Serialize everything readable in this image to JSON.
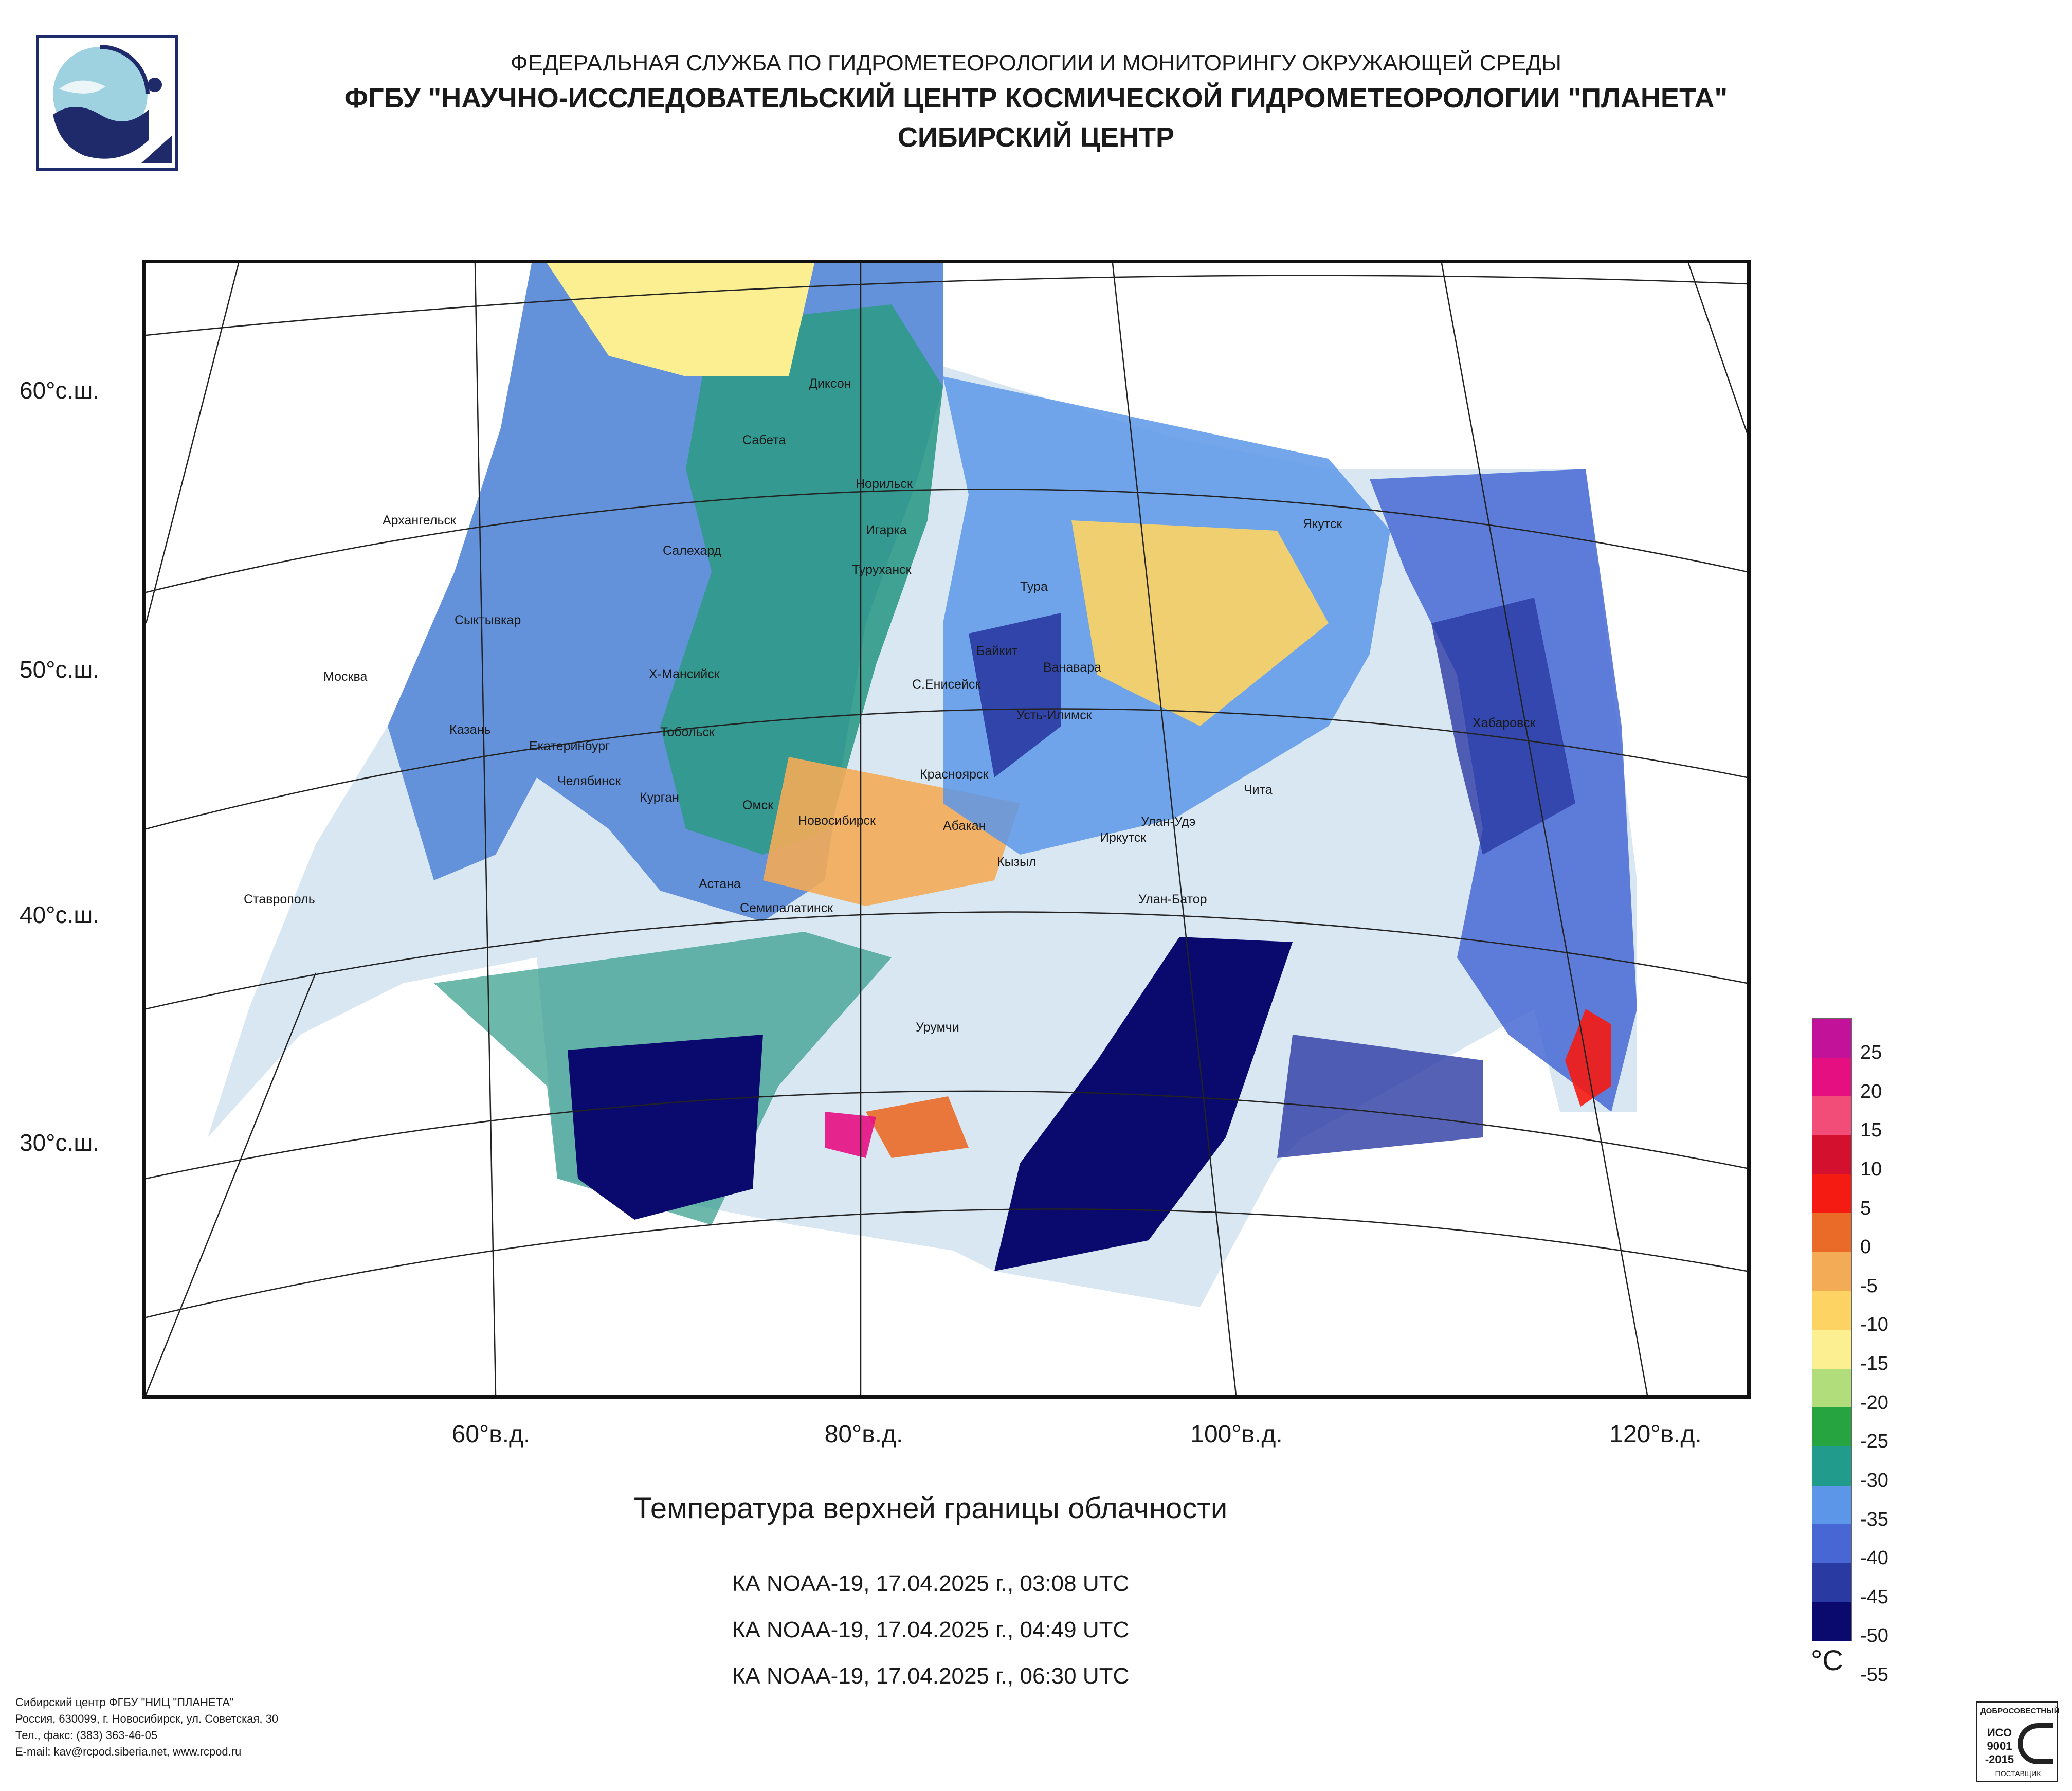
{
  "header": {
    "line1": "ФЕДЕРАЛЬНАЯ СЛУЖБА ПО ГИДРОМЕТЕОРОЛОГИИ И МОНИТОРИНГУ ОКРУЖАЮЩЕЙ СРЕДЫ",
    "line2": "ФГБУ \"НАУЧНО-ИССЛЕДОВАТЕЛЬСКИЙ ЦЕНТР КОСМИЧЕСКОЙ ГИДРОМЕТЕОРОЛОГИИ \"ПЛАНЕТА\"",
    "line3": "СИБИРСКИЙ ЦЕНТР"
  },
  "logo": {
    "icon": "planeta-logo-icon"
  },
  "map": {
    "lat_labels": [
      "60°с.ш.",
      "50°с.ш.",
      "40°с.ш.",
      "30°с.ш."
    ],
    "lon_labels": [
      "60°в.д.",
      "80°в.д.",
      "100°в.д.",
      "120°в.д."
    ],
    "cities": [
      "Диксон",
      "Сабета",
      "Норильск",
      "Игарка",
      "Туруханск",
      "Якутск",
      "Архангельск",
      "Салехард",
      "Тура",
      "Сыктывкар",
      "Байкит",
      "Ванавара",
      "Х-Мансийск",
      "С.Енисейск",
      "Москва",
      "Усть-Илимск",
      "Хабаровск",
      "Казань",
      "Тобольск",
      "Екатеринбург",
      "Челябинск",
      "Курган",
      "Красноярск",
      "Чита",
      "Омск",
      "Новосибирск",
      "Абакан",
      "Улан-Удэ",
      "Иркутск",
      "Кызыл",
      "Астана",
      "Улан-Батор",
      "Ставрополь",
      "Семипалатинск",
      "Урумчи"
    ]
  },
  "caption": {
    "title": "Температура верхней границы облачности",
    "passes": [
      "КА NOAA-19, 17.04.2025 г., 03:08 UTC",
      "КА NOAA-19, 17.04.2025 г., 04:49 UTC",
      "КА NOAA-19, 17.04.2025 г., 06:30 UTC"
    ]
  },
  "colorscale": {
    "unit": "°C",
    "colors": [
      "#c3129a",
      "#e60f82",
      "#f14d78",
      "#d3102d",
      "#f51b12",
      "#ea6a28",
      "#f3ab56",
      "#fdd463",
      "#fbef92",
      "#b2dd7b",
      "#25a440",
      "#219b8b",
      "#5c96e8",
      "#4768d4",
      "#2a3aa3",
      "#0a0a6e"
    ],
    "ticks": [
      "25",
      "20",
      "15",
      "10",
      "5",
      "0",
      "-5",
      "-10",
      "-15",
      "-20",
      "-25",
      "-30",
      "-35",
      "-40",
      "-45",
      "-50",
      "-55"
    ]
  },
  "footer": {
    "org_lines": [
      "Сибирский центр ФГБУ \"НИЦ \"ПЛАНЕТА\"",
      "Россия, 630099, г. Новосибирск, ул. Советская, 30",
      "Тел., факс: (383) 363-46-05",
      "E-mail: kav@rcpod.siberia.net, www.rcpod.ru"
    ],
    "cert_top": "ДОБРОСОВЕСТНЫЙ",
    "cert_main": "ИСО 9001 -2015",
    "cert_bottom": "ПОСТАВЩИК"
  }
}
